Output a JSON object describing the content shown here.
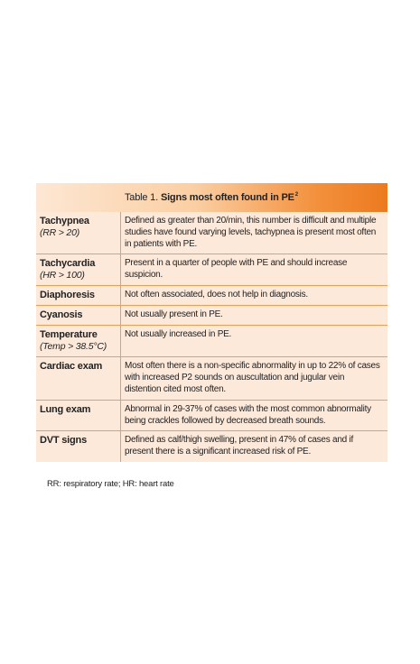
{
  "table": {
    "title_prefix": "Table 1.",
    "title": "Signs most often found in PE",
    "title_superscript": "2",
    "rows": [
      {
        "sign": "Tachypnea",
        "sub": "(RR > 20)",
        "description": "Defined as greater than 20/min, this number is difficult and multiple studies have found varying levels, tachypnea is present most often in patients with PE."
      },
      {
        "sign": "Tachycardia",
        "sub": "(HR > 100)",
        "description": "Present in a quarter of people with PE and should increase suspicion."
      },
      {
        "sign": "Diaphoresis",
        "sub": "",
        "description": "Not often associated, does not help in diagnosis."
      },
      {
        "sign": "Cyanosis",
        "sub": "",
        "description": "Not usually present in PE."
      },
      {
        "sign": "Temperature",
        "sub": "(Temp > 38.5°C)",
        "description": "Not usually increased in PE."
      },
      {
        "sign": "Cardiac exam",
        "sub": "",
        "description": "Most often there is a non-specific abnormality in up to 22% of cases with increased P2 sounds on auscultation and jugular vein distention cited most often."
      },
      {
        "sign": "Lung exam",
        "sub": "",
        "description": "Abnormal in 29-37% of cases with the most common abnormality being crackles followed by decreased breath sounds."
      },
      {
        "sign": "DVT signs",
        "sub": "",
        "description": "Defined as calf/thigh swelling, present in 47% of cases and if present there is a significant increased risk of PE."
      }
    ]
  },
  "footnote": "RR: respiratory rate; HR: heart rate",
  "colors": {
    "row_background": "#fde9da",
    "border": "#f29b55",
    "header_accent": "#ec7a1f"
  }
}
